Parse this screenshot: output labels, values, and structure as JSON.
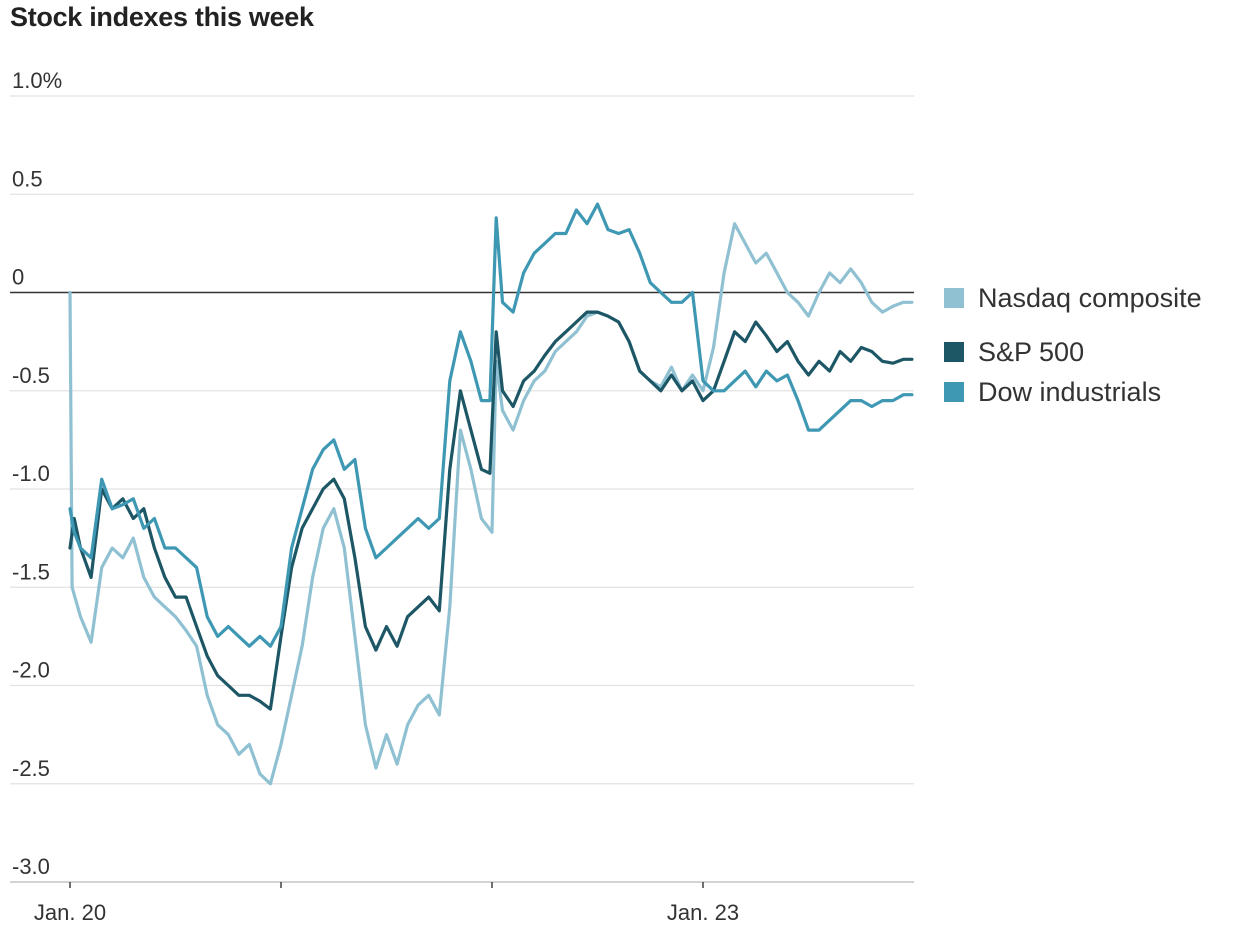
{
  "chart_data": {
    "type": "line",
    "title": "Stock indexes this week",
    "xlabel": "",
    "ylabel": "",
    "ylim": [
      -3.0,
      1.0
    ],
    "y_ticks": [
      {
        "value": 1.0,
        "label": "1.0%"
      },
      {
        "value": 0.5,
        "label": "0.5"
      },
      {
        "value": 0,
        "label": "0"
      },
      {
        "value": -0.5,
        "label": "-0.5"
      },
      {
        "value": -1.0,
        "label": "-1.0"
      },
      {
        "value": -1.5,
        "label": "-1.5"
      },
      {
        "value": -2.0,
        "label": "-2.0"
      },
      {
        "value": -2.5,
        "label": "-2.5"
      },
      {
        "value": -3.0,
        "label": "-3.0"
      }
    ],
    "x_range": [
      0,
      4
    ],
    "x_unit": "trading days (Jan. 20 = 0, Jan. 23 = 3)",
    "x_ticks": [
      {
        "value": 0,
        "label": "Jan. 20"
      },
      {
        "value": 1,
        "label": ""
      },
      {
        "value": 2,
        "label": ""
      },
      {
        "value": 3,
        "label": "Jan. 23"
      }
    ],
    "grid": true,
    "legend_position": "right",
    "series": [
      {
        "name": "Nasdaq composite",
        "color": "#8fc1d2",
        "points": [
          [
            0,
            0
          ],
          [
            0.01,
            -1.5
          ],
          [
            0.05,
            -1.65
          ],
          [
            0.1,
            -1.78
          ],
          [
            0.15,
            -1.4
          ],
          [
            0.2,
            -1.3
          ],
          [
            0.25,
            -1.35
          ],
          [
            0.3,
            -1.25
          ],
          [
            0.35,
            -1.45
          ],
          [
            0.4,
            -1.55
          ],
          [
            0.45,
            -1.6
          ],
          [
            0.5,
            -1.65
          ],
          [
            0.55,
            -1.72
          ],
          [
            0.6,
            -1.8
          ],
          [
            0.65,
            -2.05
          ],
          [
            0.7,
            -2.2
          ],
          [
            0.75,
            -2.25
          ],
          [
            0.8,
            -2.35
          ],
          [
            0.85,
            -2.3
          ],
          [
            0.9,
            -2.45
          ],
          [
            0.95,
            -2.5
          ],
          [
            1.0,
            -2.3
          ],
          [
            1.05,
            -2.05
          ],
          [
            1.1,
            -1.8
          ],
          [
            1.15,
            -1.45
          ],
          [
            1.2,
            -1.2
          ],
          [
            1.25,
            -1.1
          ],
          [
            1.3,
            -1.3
          ],
          [
            1.35,
            -1.75
          ],
          [
            1.4,
            -2.2
          ],
          [
            1.45,
            -2.42
          ],
          [
            1.5,
            -2.25
          ],
          [
            1.55,
            -2.4
          ],
          [
            1.6,
            -2.2
          ],
          [
            1.65,
            -2.1
          ],
          [
            1.7,
            -2.05
          ],
          [
            1.75,
            -2.15
          ],
          [
            1.8,
            -1.6
          ],
          [
            1.85,
            -0.7
          ],
          [
            1.9,
            -0.9
          ],
          [
            1.95,
            -1.15
          ],
          [
            2.0,
            -1.22
          ],
          [
            2.02,
            -0.35
          ],
          [
            2.05,
            -0.6
          ],
          [
            2.1,
            -0.7
          ],
          [
            2.15,
            -0.55
          ],
          [
            2.2,
            -0.45
          ],
          [
            2.25,
            -0.4
          ],
          [
            2.3,
            -0.3
          ],
          [
            2.35,
            -0.25
          ],
          [
            2.4,
            -0.2
          ],
          [
            2.45,
            -0.12
          ],
          [
            2.5,
            -0.1
          ],
          [
            2.55,
            -0.12
          ],
          [
            2.6,
            -0.15
          ],
          [
            2.65,
            -0.25
          ],
          [
            2.7,
            -0.4
          ],
          [
            2.75,
            -0.45
          ],
          [
            2.8,
            -0.48
          ],
          [
            2.85,
            -0.38
          ],
          [
            2.9,
            -0.5
          ],
          [
            2.95,
            -0.42
          ],
          [
            3.0,
            -0.5
          ],
          [
            3.05,
            -0.28
          ],
          [
            3.1,
            0.1
          ],
          [
            3.15,
            0.35
          ],
          [
            3.2,
            0.25
          ],
          [
            3.25,
            0.15
          ],
          [
            3.3,
            0.2
          ],
          [
            3.35,
            0.1
          ],
          [
            3.4,
            0
          ],
          [
            3.45,
            -0.05
          ],
          [
            3.5,
            -0.12
          ],
          [
            3.55,
            0
          ],
          [
            3.6,
            0.1
          ],
          [
            3.65,
            0.05
          ],
          [
            3.7,
            0.12
          ],
          [
            3.75,
            0.05
          ],
          [
            3.8,
            -0.05
          ],
          [
            3.85,
            -0.1
          ],
          [
            3.9,
            -0.07
          ],
          [
            3.95,
            -0.05
          ],
          [
            3.99,
            -0.05
          ]
        ]
      },
      {
        "name": "S&P 500",
        "color": "#1d5766",
        "points": [
          [
            0,
            -1.3
          ],
          [
            0.02,
            -1.15
          ],
          [
            0.05,
            -1.3
          ],
          [
            0.1,
            -1.45
          ],
          [
            0.15,
            -1.0
          ],
          [
            0.2,
            -1.1
          ],
          [
            0.25,
            -1.05
          ],
          [
            0.3,
            -1.15
          ],
          [
            0.35,
            -1.1
          ],
          [
            0.4,
            -1.3
          ],
          [
            0.45,
            -1.45
          ],
          [
            0.5,
            -1.55
          ],
          [
            0.55,
            -1.55
          ],
          [
            0.6,
            -1.7
          ],
          [
            0.65,
            -1.85
          ],
          [
            0.7,
            -1.95
          ],
          [
            0.75,
            -2.0
          ],
          [
            0.8,
            -2.05
          ],
          [
            0.85,
            -2.05
          ],
          [
            0.9,
            -2.08
          ],
          [
            0.95,
            -2.12
          ],
          [
            1.0,
            -1.75
          ],
          [
            1.05,
            -1.4
          ],
          [
            1.1,
            -1.2
          ],
          [
            1.15,
            -1.1
          ],
          [
            1.2,
            -1.0
          ],
          [
            1.25,
            -0.95
          ],
          [
            1.3,
            -1.05
          ],
          [
            1.35,
            -1.35
          ],
          [
            1.4,
            -1.7
          ],
          [
            1.45,
            -1.82
          ],
          [
            1.5,
            -1.7
          ],
          [
            1.55,
            -1.8
          ],
          [
            1.6,
            -1.65
          ],
          [
            1.65,
            -1.6
          ],
          [
            1.7,
            -1.55
          ],
          [
            1.75,
            -1.62
          ],
          [
            1.8,
            -0.9
          ],
          [
            1.85,
            -0.5
          ],
          [
            1.9,
            -0.7
          ],
          [
            1.95,
            -0.9
          ],
          [
            1.99,
            -0.92
          ],
          [
            2.02,
            -0.2
          ],
          [
            2.05,
            -0.5
          ],
          [
            2.1,
            -0.58
          ],
          [
            2.15,
            -0.45
          ],
          [
            2.2,
            -0.4
          ],
          [
            2.25,
            -0.32
          ],
          [
            2.3,
            -0.25
          ],
          [
            2.35,
            -0.2
          ],
          [
            2.4,
            -0.15
          ],
          [
            2.45,
            -0.1
          ],
          [
            2.5,
            -0.1
          ],
          [
            2.55,
            -0.12
          ],
          [
            2.6,
            -0.15
          ],
          [
            2.65,
            -0.25
          ],
          [
            2.7,
            -0.4
          ],
          [
            2.75,
            -0.45
          ],
          [
            2.8,
            -0.5
          ],
          [
            2.85,
            -0.42
          ],
          [
            2.9,
            -0.5
          ],
          [
            2.95,
            -0.45
          ],
          [
            3.0,
            -0.55
          ],
          [
            3.05,
            -0.5
          ],
          [
            3.1,
            -0.35
          ],
          [
            3.15,
            -0.2
          ],
          [
            3.2,
            -0.25
          ],
          [
            3.25,
            -0.15
          ],
          [
            3.3,
            -0.22
          ],
          [
            3.35,
            -0.3
          ],
          [
            3.4,
            -0.25
          ],
          [
            3.45,
            -0.35
          ],
          [
            3.5,
            -0.42
          ],
          [
            3.55,
            -0.35
          ],
          [
            3.6,
            -0.4
          ],
          [
            3.65,
            -0.3
          ],
          [
            3.7,
            -0.35
          ],
          [
            3.75,
            -0.28
          ],
          [
            3.8,
            -0.3
          ],
          [
            3.85,
            -0.35
          ],
          [
            3.9,
            -0.36
          ],
          [
            3.95,
            -0.34
          ],
          [
            3.99,
            -0.34
          ]
        ]
      },
      {
        "name": "Dow industrials",
        "color": "#3e98b3",
        "points": [
          [
            0,
            -1.1
          ],
          [
            0.02,
            -1.22
          ],
          [
            0.05,
            -1.3
          ],
          [
            0.1,
            -1.35
          ],
          [
            0.15,
            -0.95
          ],
          [
            0.2,
            -1.1
          ],
          [
            0.25,
            -1.08
          ],
          [
            0.3,
            -1.05
          ],
          [
            0.35,
            -1.2
          ],
          [
            0.4,
            -1.15
          ],
          [
            0.45,
            -1.3
          ],
          [
            0.5,
            -1.3
          ],
          [
            0.55,
            -1.35
          ],
          [
            0.6,
            -1.4
          ],
          [
            0.65,
            -1.65
          ],
          [
            0.7,
            -1.75
          ],
          [
            0.75,
            -1.7
          ],
          [
            0.8,
            -1.75
          ],
          [
            0.85,
            -1.8
          ],
          [
            0.9,
            -1.75
          ],
          [
            0.95,
            -1.8
          ],
          [
            1.0,
            -1.7
          ],
          [
            1.05,
            -1.3
          ],
          [
            1.1,
            -1.1
          ],
          [
            1.15,
            -0.9
          ],
          [
            1.2,
            -0.8
          ],
          [
            1.25,
            -0.75
          ],
          [
            1.3,
            -0.9
          ],
          [
            1.35,
            -0.85
          ],
          [
            1.4,
            -1.2
          ],
          [
            1.45,
            -1.35
          ],
          [
            1.5,
            -1.3
          ],
          [
            1.55,
            -1.25
          ],
          [
            1.6,
            -1.2
          ],
          [
            1.65,
            -1.15
          ],
          [
            1.7,
            -1.2
          ],
          [
            1.75,
            -1.15
          ],
          [
            1.8,
            -0.45
          ],
          [
            1.85,
            -0.2
          ],
          [
            1.9,
            -0.35
          ],
          [
            1.95,
            -0.55
          ],
          [
            1.99,
            -0.55
          ],
          [
            2.02,
            0.38
          ],
          [
            2.05,
            -0.05
          ],
          [
            2.1,
            -0.1
          ],
          [
            2.15,
            0.1
          ],
          [
            2.2,
            0.2
          ],
          [
            2.25,
            0.25
          ],
          [
            2.3,
            0.3
          ],
          [
            2.35,
            0.3
          ],
          [
            2.4,
            0.42
          ],
          [
            2.45,
            0.35
          ],
          [
            2.5,
            0.45
          ],
          [
            2.55,
            0.32
          ],
          [
            2.6,
            0.3
          ],
          [
            2.65,
            0.32
          ],
          [
            2.7,
            0.2
          ],
          [
            2.75,
            0.05
          ],
          [
            2.8,
            0
          ],
          [
            2.85,
            -0.05
          ],
          [
            2.9,
            -0.05
          ],
          [
            2.95,
            0
          ],
          [
            3.0,
            -0.45
          ],
          [
            3.05,
            -0.5
          ],
          [
            3.1,
            -0.5
          ],
          [
            3.15,
            -0.45
          ],
          [
            3.2,
            -0.4
          ],
          [
            3.25,
            -0.48
          ],
          [
            3.3,
            -0.4
          ],
          [
            3.35,
            -0.45
          ],
          [
            3.4,
            -0.42
          ],
          [
            3.45,
            -0.55
          ],
          [
            3.5,
            -0.7
          ],
          [
            3.55,
            -0.7
          ],
          [
            3.6,
            -0.65
          ],
          [
            3.65,
            -0.6
          ],
          [
            3.7,
            -0.55
          ],
          [
            3.75,
            -0.55
          ],
          [
            3.8,
            -0.58
          ],
          [
            3.85,
            -0.55
          ],
          [
            3.9,
            -0.55
          ],
          [
            3.95,
            -0.52
          ],
          [
            3.99,
            -0.52
          ]
        ]
      }
    ]
  }
}
